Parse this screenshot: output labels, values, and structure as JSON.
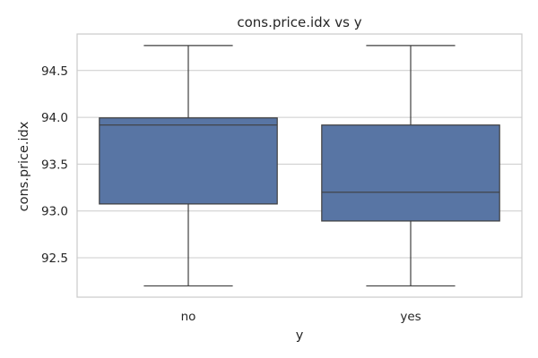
{
  "chart_data": {
    "type": "box",
    "title": "cons.price.idx vs y",
    "xlabel": "y",
    "ylabel": "cons.price.idx",
    "categories": [
      "no",
      "yes"
    ],
    "ylim": [
      92.08,
      94.89
    ],
    "yticks": [
      92.5,
      93.0,
      93.5,
      94.0,
      94.5
    ],
    "ytick_labels": [
      "92.5",
      "93.0",
      "93.5",
      "94.0",
      "94.5"
    ],
    "grid": true,
    "legend": "none",
    "boxes": [
      {
        "category": "no",
        "whisker_low": 92.2,
        "q1": 93.075,
        "median": 93.918,
        "q3": 93.994,
        "whisker_high": 94.767
      },
      {
        "category": "yes",
        "whisker_low": 92.2,
        "q1": 92.893,
        "median": 93.2,
        "q3": 93.918,
        "whisker_high": 94.767
      }
    ],
    "colors": {
      "box_fill": "#5875a4",
      "box_edge": "#3f3f3f",
      "grid": "#cccccc",
      "frame": "#cccccc"
    }
  }
}
